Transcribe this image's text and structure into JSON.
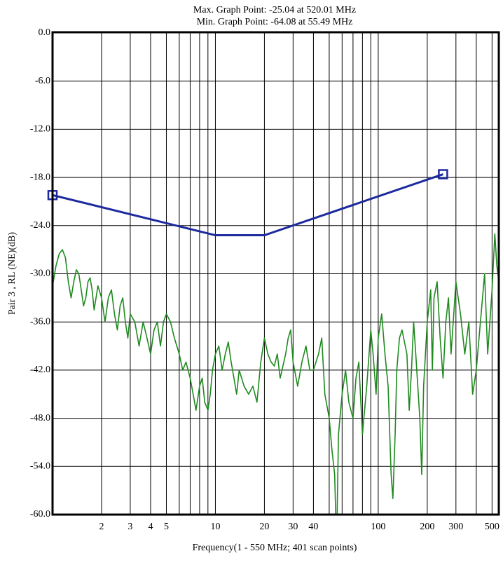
{
  "chart_data": {
    "type": "line",
    "title": "Max. Graph Point: -25.04 at 520.01 MHz",
    "subtitle": "Min. Graph Point: -64.08 at 55.49 MHz",
    "x_label": "Frequency(1 - 550 MHz; 401 scan points)",
    "y_label": "Pair 3 , RL (NE)(dB)",
    "log_x": true,
    "grid": true,
    "xlim": [
      1,
      550
    ],
    "ylim": [
      -60,
      0
    ],
    "xticks": [
      2,
      3,
      4,
      5,
      10,
      20,
      30,
      40,
      100,
      200,
      300,
      500
    ],
    "xgrid": [
      1,
      2,
      3,
      4,
      5,
      6,
      7,
      8,
      9,
      10,
      20,
      30,
      40,
      50,
      60,
      70,
      80,
      90,
      100,
      200,
      300,
      400,
      500
    ],
    "yticks": [
      {
        "value": 0,
        "label": "0.0"
      },
      {
        "value": -6,
        "label": "-6.0"
      },
      {
        "value": -12,
        "label": "-12.0"
      },
      {
        "value": -18,
        "label": "-18.0"
      },
      {
        "value": -24,
        "label": "-24.0"
      },
      {
        "value": -30,
        "label": "-30.0"
      },
      {
        "value": -36,
        "label": "-36.0"
      },
      {
        "value": -42,
        "label": "-42.0"
      },
      {
        "value": -48,
        "label": "-48.0"
      },
      {
        "value": -54,
        "label": "-54.0"
      },
      {
        "value": -60,
        "label": "-60.0"
      }
    ],
    "series": [
      {
        "color": "#1c2a9e",
        "markers": "ends",
        "x": [
          1,
          10,
          20,
          250
        ],
        "values": [
          -20.2,
          -25.2,
          -25.2,
          -17.6
        ]
      },
      {
        "color": "#1f8a1f",
        "x": [
          1,
          1.05,
          1.1,
          1.15,
          1.2,
          1.25,
          1.3,
          1.35,
          1.4,
          1.45,
          1.5,
          1.55,
          1.6,
          1.65,
          1.7,
          1.75,
          1.8,
          1.85,
          1.9,
          2.0,
          2.1,
          2.2,
          2.3,
          2.4,
          2.5,
          2.6,
          2.7,
          2.8,
          2.9,
          3.0,
          3.2,
          3.4,
          3.6,
          3.8,
          4.0,
          4.2,
          4.4,
          4.6,
          4.8,
          5.0,
          5.3,
          5.6,
          6.0,
          6.3,
          6.6,
          7.0,
          7.3,
          7.6,
          8.0,
          8.3,
          8.6,
          9.0,
          9.3,
          9.6,
          10,
          10.5,
          11,
          11.5,
          12,
          12.5,
          13,
          13.5,
          14,
          15,
          16,
          17,
          18,
          19,
          20,
          21,
          22,
          23,
          24,
          25,
          27,
          28,
          29,
          30,
          32,
          34,
          36,
          38,
          40,
          43,
          45,
          47,
          50,
          52,
          54,
          55.49,
          57,
          60,
          63,
          66,
          70,
          73,
          76,
          80,
          85,
          90,
          93,
          97,
          100,
          105,
          110,
          115,
          120,
          123,
          127,
          130,
          135,
          140,
          150,
          155,
          160,
          165,
          170,
          180,
          185,
          190,
          200,
          210,
          215,
          220,
          230,
          240,
          250,
          260,
          270,
          280,
          300,
          320,
          340,
          360,
          380,
          400,
          420,
          450,
          470,
          500,
          520.01,
          535,
          550
        ],
        "values": [
          -31.5,
          -29,
          -27.5,
          -27,
          -28,
          -31,
          -33,
          -31,
          -29.5,
          -30,
          -32,
          -34,
          -33,
          -31,
          -30.5,
          -32,
          -34.5,
          -33,
          -31.5,
          -33,
          -36,
          -33,
          -32,
          -35,
          -37,
          -34,
          -33,
          -36,
          -38,
          -35,
          -36,
          -39,
          -36,
          -38,
          -40,
          -37,
          -36,
          -39,
          -36,
          -35,
          -36,
          -38,
          -40,
          -42,
          -41,
          -43,
          -45,
          -47,
          -44,
          -43,
          -46,
          -47,
          -45,
          -42,
          -40,
          -39,
          -42,
          -40,
          -38.5,
          -41,
          -43,
          -45,
          -42,
          -44,
          -45,
          -44,
          -46,
          -41,
          -38,
          -40,
          -41,
          -41.5,
          -40,
          -43,
          -40,
          -38,
          -37,
          -41,
          -44,
          -41,
          -39,
          -42,
          -42,
          -40,
          -38,
          -45,
          -48,
          -52,
          -55,
          -64.08,
          -50,
          -45,
          -42,
          -46,
          -48,
          -43,
          -41,
          -50,
          -44,
          -37,
          -40,
          -45,
          -38,
          -35,
          -40,
          -44,
          -55,
          -58,
          -50,
          -42,
          -38,
          -37,
          -40,
          -47,
          -42,
          -36,
          -40,
          -48,
          -55,
          -44,
          -36,
          -32,
          -42,
          -33,
          -31,
          -38,
          -43,
          -36,
          -33,
          -40,
          -31,
          -35,
          -40,
          -36,
          -45,
          -42,
          -37,
          -30,
          -40,
          -32,
          -25.04,
          -29,
          -31
        ]
      }
    ]
  }
}
